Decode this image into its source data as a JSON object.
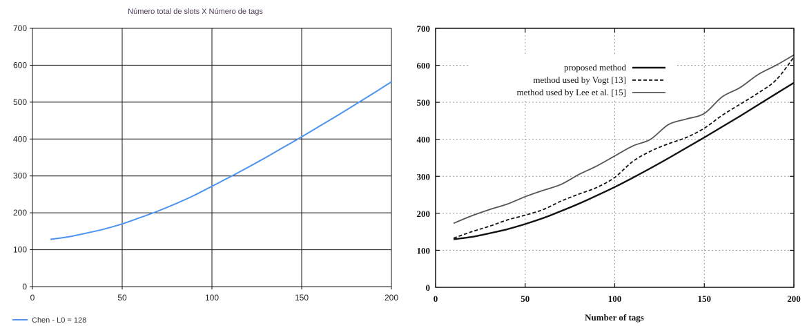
{
  "chart_data": [
    {
      "type": "line",
      "title": "Número total de slots X  Número de tags",
      "xlabel": "",
      "ylabel": "",
      "xlim": [
        0,
        200
      ],
      "ylim": [
        0,
        700
      ],
      "x_ticks": [
        "0",
        "50",
        "100",
        "150",
        "200"
      ],
      "y_ticks": [
        "0",
        "100",
        "200",
        "300",
        "400",
        "500",
        "600",
        "700"
      ],
      "grid": true,
      "legend_position": "bottom-left",
      "series": [
        {
          "name": "Chen - L0 = 128",
          "color": "#4d94f0",
          "x": [
            10,
            20,
            30,
            40,
            50,
            60,
            70,
            80,
            90,
            100,
            110,
            120,
            130,
            140,
            150,
            160,
            170,
            180,
            190,
            200
          ],
          "y": [
            128,
            135,
            145,
            156,
            170,
            187,
            205,
            225,
            247,
            272,
            297,
            323,
            350,
            378,
            406,
            435,
            464,
            494,
            524,
            555
          ]
        }
      ]
    },
    {
      "type": "line",
      "title": "",
      "xlabel": "Number of tags",
      "ylabel": "",
      "xlim": [
        0,
        200
      ],
      "ylim": [
        0,
        700
      ],
      "x_ticks": [
        "0",
        "50",
        "100",
        "150",
        "200"
      ],
      "y_ticks": [
        "0",
        "100",
        "200",
        "300",
        "400",
        "500",
        "600",
        "700"
      ],
      "grid": true,
      "legend_position": "top-right",
      "series": [
        {
          "name": "proposed method",
          "color": "#111111",
          "x": [
            10,
            20,
            30,
            40,
            50,
            60,
            70,
            80,
            90,
            100,
            110,
            120,
            130,
            140,
            150,
            160,
            170,
            180,
            190,
            200
          ],
          "y": [
            130,
            136,
            146,
            157,
            171,
            187,
            206,
            226,
            248,
            271,
            296,
            322,
            349,
            377,
            405,
            434,
            463,
            493,
            523,
            553
          ]
        },
        {
          "name": "method used by Vogt [13]",
          "color": "#111111",
          "x": [
            10,
            20,
            30,
            40,
            50,
            60,
            70,
            80,
            90,
            100,
            110,
            120,
            130,
            140,
            150,
            160,
            170,
            180,
            190,
            200
          ],
          "y": [
            133,
            150,
            165,
            182,
            195,
            210,
            233,
            252,
            270,
            297,
            340,
            368,
            388,
            405,
            430,
            465,
            495,
            525,
            560,
            622
          ]
        },
        {
          "name": "method used by Lee et al. [15]",
          "color": "#555555",
          "x": [
            10,
            20,
            30,
            40,
            50,
            60,
            70,
            80,
            90,
            100,
            110,
            120,
            130,
            140,
            150,
            160,
            170,
            180,
            190,
            200
          ],
          "y": [
            173,
            193,
            210,
            225,
            245,
            262,
            278,
            305,
            328,
            355,
            382,
            400,
            440,
            455,
            470,
            515,
            540,
            575,
            600,
            628
          ]
        }
      ]
    }
  ]
}
